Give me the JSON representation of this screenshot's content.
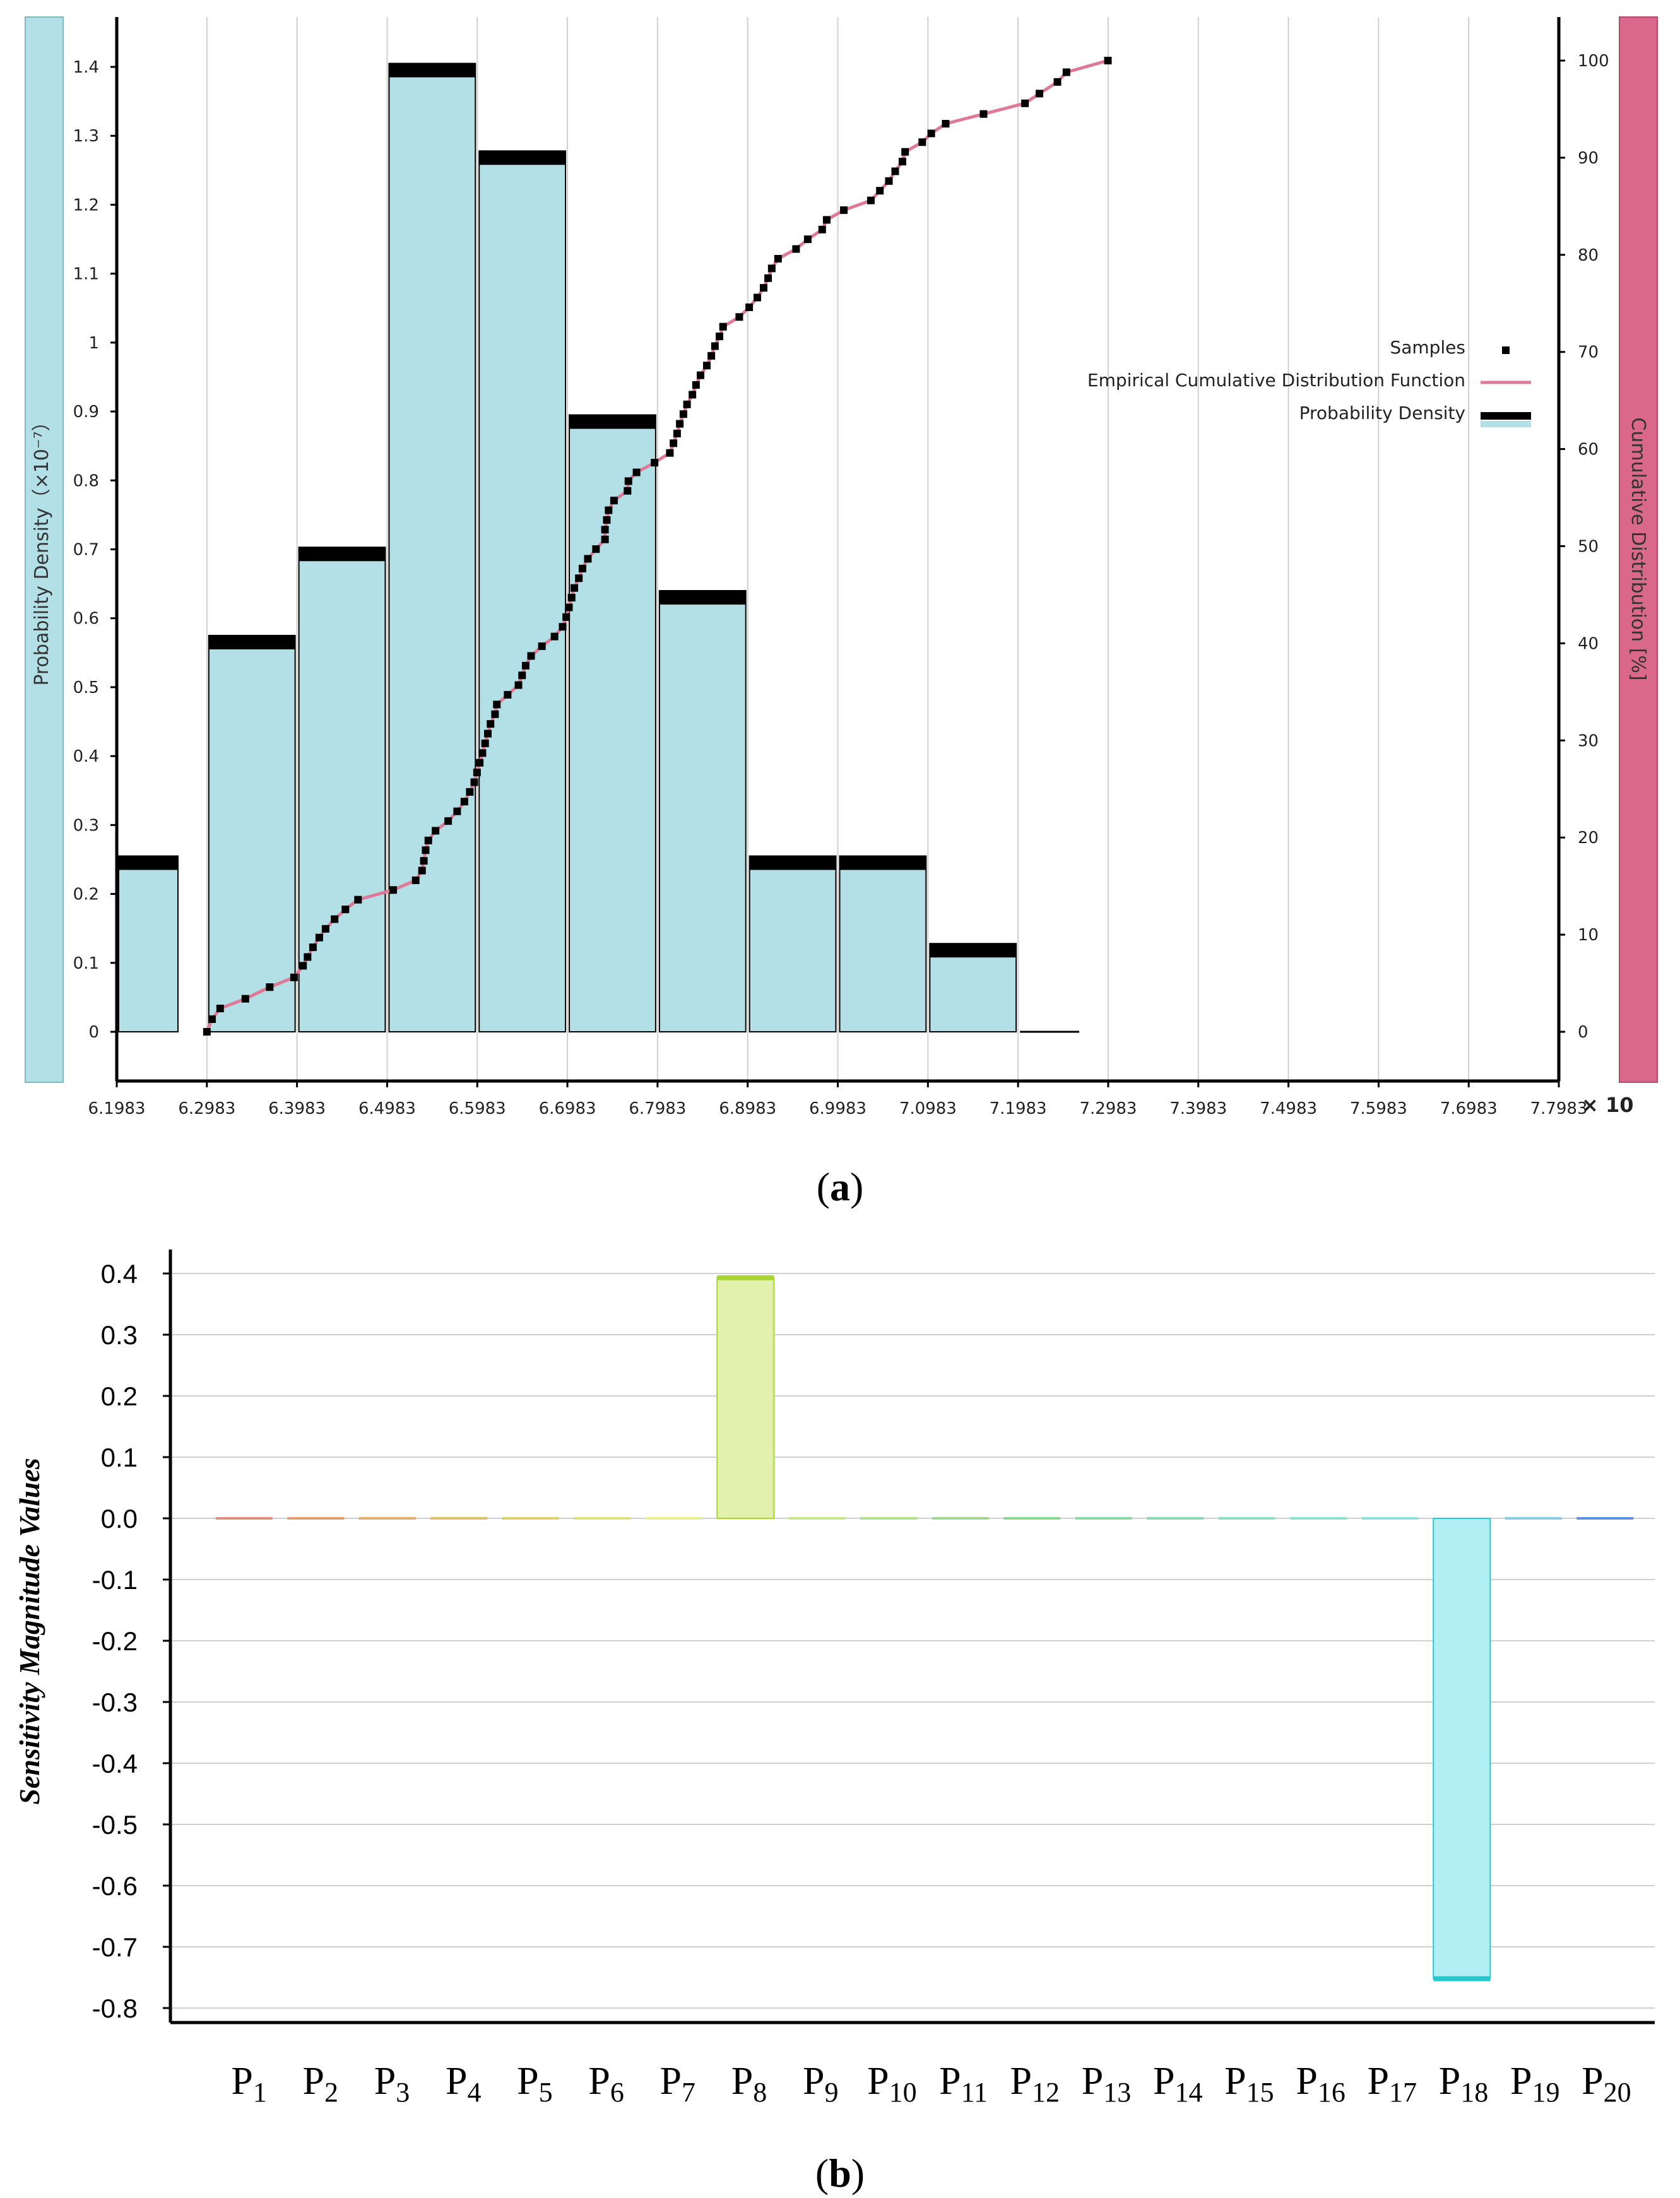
{
  "colors": {
    "hist_fill": "#b2e0e6",
    "hist_cap": "#000000",
    "ecdf_line": "#de7a98",
    "left_axis_bar": "#b2e0e6",
    "right_axis_bar": "#d9688c",
    "grid": "#d0d0d0",
    "bar_p8": "#e2f2ae",
    "bar_p8_edge": "#a8d530",
    "bar_p18": "#b0eff3",
    "bar_p18_edge": "#28c7d0"
  },
  "chart_data": [
    {
      "type": "histogram+ecdf",
      "panel_label": "a",
      "ylabel_left": "Probability Density（×10⁻⁷）",
      "ylabel_right": "Cumulative Distribution [%]",
      "x_multiplier": "× 10",
      "x_ticks": [
        "6.1983",
        "6.2983",
        "6.3983",
        "6.4983",
        "6.5983",
        "6.6983",
        "6.7983",
        "6.8983",
        "6.9983",
        "7.0983",
        "7.1983",
        "7.2983",
        "7.3983",
        "7.4983",
        "7.5983",
        "7.6983",
        "7.7983"
      ],
      "xlim": [
        6.1983,
        7.7983
      ],
      "ylim_left": [
        0,
        1.48
      ],
      "y_ticks_left": [
        "0",
        "0.1",
        "0.2",
        "0.3",
        "0.4",
        "0.5",
        "0.6",
        "0.7",
        "0.8",
        "0.9",
        "1",
        "1.1",
        "1.2",
        "1.3",
        "1.4"
      ],
      "ylim_right": [
        0,
        105.7
      ],
      "y_ticks_right": [
        "0",
        "10",
        "20",
        "30",
        "40",
        "50",
        "60",
        "70",
        "80",
        "90",
        "100"
      ],
      "legend": {
        "position": "right-middle",
        "entries": [
          "Samples",
          "Empirical Cumulative Distribution Function",
          "Probability Density"
        ]
      },
      "bins": [
        {
          "x0": 6.1983,
          "x1": 6.2683,
          "density": 0.255
        },
        {
          "x0": 6.2983,
          "x1": 6.3983,
          "density": 0.575
        },
        {
          "x0": 6.3983,
          "x1": 6.4983,
          "density": 0.703
        },
        {
          "x0": 6.4983,
          "x1": 6.5983,
          "density": 1.405
        },
        {
          "x0": 6.5983,
          "x1": 6.6983,
          "density": 1.278
        },
        {
          "x0": 6.6983,
          "x1": 6.7983,
          "density": 0.895
        },
        {
          "x0": 6.7983,
          "x1": 6.8983,
          "density": 0.64
        },
        {
          "x0": 6.8983,
          "x1": 6.9983,
          "density": 0.255
        },
        {
          "x0": 6.9983,
          "x1": 7.0983,
          "density": 0.255
        },
        {
          "x0": 7.0983,
          "x1": 7.1983,
          "density": 0.128
        },
        {
          "x0": 7.1983,
          "x1": 7.2683,
          "density": 0.0
        }
      ],
      "ecdf": [
        [
          6.2983,
          0.0
        ],
        [
          6.304,
          1.3
        ],
        [
          6.313,
          2.4
        ],
        [
          6.341,
          3.4
        ],
        [
          6.368,
          4.6
        ],
        [
          6.395,
          5.6
        ],
        [
          6.405,
          6.8
        ],
        [
          6.41,
          7.7
        ],
        [
          6.416,
          8.7
        ],
        [
          6.423,
          9.7
        ],
        [
          6.43,
          10.6
        ],
        [
          6.44,
          11.6
        ],
        [
          6.452,
          12.6
        ],
        [
          6.466,
          13.6
        ],
        [
          6.505,
          14.6
        ],
        [
          6.53,
          15.6
        ],
        [
          6.537,
          16.6
        ],
        [
          6.539,
          17.6
        ],
        [
          6.541,
          18.7
        ],
        [
          6.544,
          19.7
        ],
        [
          6.552,
          20.7
        ],
        [
          6.566,
          21.7
        ],
        [
          6.576,
          22.7
        ],
        [
          6.584,
          23.7
        ],
        [
          6.59,
          24.7
        ],
        [
          6.595,
          25.7
        ],
        [
          6.598,
          26.7
        ],
        [
          6.601,
          27.7
        ],
        [
          6.604,
          28.7
        ],
        [
          6.607,
          29.7
        ],
        [
          6.61,
          30.7
        ],
        [
          6.613,
          31.7
        ],
        [
          6.618,
          32.7
        ],
        [
          6.62,
          33.7
        ],
        [
          6.632,
          34.7
        ],
        [
          6.644,
          35.7
        ],
        [
          6.648,
          36.7
        ],
        [
          6.652,
          37.7
        ],
        [
          6.658,
          38.7
        ],
        [
          6.67,
          39.7
        ],
        [
          6.684,
          40.7
        ],
        [
          6.693,
          41.7
        ],
        [
          6.697,
          42.7
        ],
        [
          6.7,
          43.7
        ],
        [
          6.703,
          44.7
        ],
        [
          6.706,
          45.7
        ],
        [
          6.711,
          46.7
        ],
        [
          6.715,
          47.7
        ],
        [
          6.721,
          48.7
        ],
        [
          6.73,
          49.7
        ],
        [
          6.74,
          50.7
        ],
        [
          6.74,
          51.7
        ],
        [
          6.742,
          52.7
        ],
        [
          6.744,
          53.7
        ],
        [
          6.75,
          54.7
        ],
        [
          6.765,
          55.7
        ],
        [
          6.766,
          56.7
        ],
        [
          6.775,
          57.6
        ],
        [
          6.795,
          58.6
        ],
        [
          6.812,
          59.6
        ],
        [
          6.816,
          60.6
        ],
        [
          6.82,
          61.6
        ],
        [
          6.823,
          62.6
        ],
        [
          6.827,
          63.6
        ],
        [
          6.831,
          64.6
        ],
        [
          6.837,
          65.6
        ],
        [
          6.841,
          66.6
        ],
        [
          6.846,
          67.6
        ],
        [
          6.853,
          68.6
        ],
        [
          6.858,
          69.6
        ],
        [
          6.862,
          70.6
        ],
        [
          6.867,
          71.6
        ],
        [
          6.871,
          72.6
        ],
        [
          6.889,
          73.6
        ],
        [
          6.9,
          74.6
        ],
        [
          6.909,
          75.6
        ],
        [
          6.916,
          76.6
        ],
        [
          6.921,
          77.6
        ],
        [
          6.925,
          78.6
        ],
        [
          6.932,
          79.6
        ],
        [
          6.952,
          80.6
        ],
        [
          6.965,
          81.6
        ],
        [
          6.981,
          82.6
        ],
        [
          6.986,
          83.6
        ],
        [
          7.005,
          84.6
        ],
        [
          7.035,
          85.6
        ],
        [
          7.045,
          86.6
        ],
        [
          7.055,
          87.6
        ],
        [
          7.062,
          88.6
        ],
        [
          7.07,
          89.6
        ],
        [
          7.073,
          90.6
        ],
        [
          7.092,
          91.6
        ],
        [
          7.102,
          92.5
        ],
        [
          7.118,
          93.5
        ],
        [
          7.16,
          94.5
        ],
        [
          7.206,
          95.6
        ],
        [
          7.222,
          96.6
        ],
        [
          7.242,
          97.8
        ],
        [
          7.252,
          98.8
        ],
        [
          7.298,
          100
        ]
      ]
    },
    {
      "type": "bar",
      "panel_label": "b",
      "ylabel": "Sensitivity Magnitude Values",
      "xlabel": "",
      "title": "",
      "ylim": [
        -0.81,
        0.42
      ],
      "y_ticks": [
        "0.4",
        "0.3",
        "0.2",
        "0.1",
        "0.0",
        "-0.1",
        "-0.2",
        "-0.3",
        "-0.4",
        "-0.5",
        "-0.6",
        "-0.7",
        "-0.8"
      ],
      "categories": [
        "P1",
        "P2",
        "P3",
        "P4",
        "P5",
        "P6",
        "P7",
        "P8",
        "P9",
        "P10",
        "P11",
        "P12",
        "P13",
        "P14",
        "P15",
        "P16",
        "P17",
        "P18",
        "P19",
        "P20"
      ],
      "category_parts": [
        [
          "P",
          "1"
        ],
        [
          "P",
          "2"
        ],
        [
          "P",
          "3"
        ],
        [
          "P",
          "4"
        ],
        [
          "P",
          "5"
        ],
        [
          "P",
          "6"
        ],
        [
          "P",
          "7"
        ],
        [
          "P",
          "8"
        ],
        [
          "P",
          "9"
        ],
        [
          "P",
          "10"
        ],
        [
          "P",
          "11"
        ],
        [
          "P",
          "12"
        ],
        [
          "P",
          "13"
        ],
        [
          "P",
          "14"
        ],
        [
          "P",
          "15"
        ],
        [
          "P",
          "16"
        ],
        [
          "P",
          "17"
        ],
        [
          "P",
          "18"
        ],
        [
          "P",
          "19"
        ],
        [
          "P",
          "20"
        ]
      ],
      "values": [
        0,
        0,
        0,
        0,
        0,
        0,
        0,
        0.393,
        0,
        0,
        0,
        0,
        0,
        0,
        0,
        0,
        0,
        -0.752,
        0,
        0
      ],
      "bar_colors": [
        "#e0907a",
        "#e0a070",
        "#e0b070",
        "#e0c070",
        "#e0d070",
        "#e0e080",
        "#e8f090",
        "#e2f2ae",
        "#c8e890",
        "#b0e090",
        "#a0d890",
        "#90d890",
        "#90d8a0",
        "#90d8b0",
        "#90e0c0",
        "#90e0d0",
        "#90e0e0",
        "#b0eff3",
        "#90c8e8",
        "#6090e0"
      ]
    }
  ]
}
